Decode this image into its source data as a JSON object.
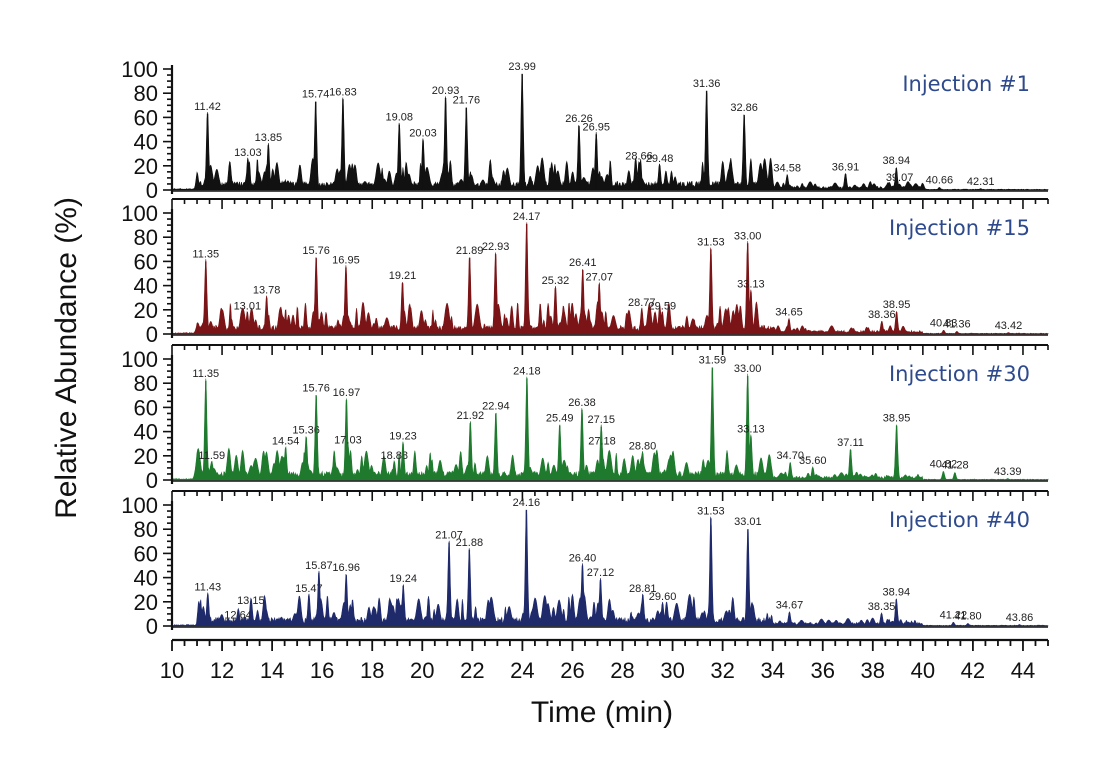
{
  "chart_data": {
    "type": "area",
    "title": "",
    "xlabel": "Time (min)",
    "ylabel": "Relative Abundance (%)",
    "xlim": [
      10,
      45
    ],
    "ylim": [
      0,
      100
    ],
    "x_ticks": [
      10,
      12,
      14,
      16,
      18,
      20,
      22,
      24,
      26,
      28,
      30,
      32,
      34,
      36,
      38,
      40,
      42,
      44
    ],
    "y_ticks": [
      0,
      20,
      40,
      60,
      80,
      100
    ],
    "grid": false,
    "legend": "none (each panel labelled top-right)",
    "panels": [
      {
        "name": "Injection #1",
        "color": "#111111",
        "peaks": [
          {
            "rt": 11.42,
            "label": "11.42",
            "abundance": 63
          },
          {
            "rt": 13.03,
            "label": "13.03",
            "abundance": 25
          },
          {
            "rt": 13.85,
            "label": "13.85",
            "abundance": 37
          },
          {
            "rt": 15.74,
            "label": "15.74",
            "abundance": 73
          },
          {
            "rt": 16.83,
            "label": "16.83",
            "abundance": 75
          },
          {
            "rt": 19.08,
            "label": "19.08",
            "abundance": 54
          },
          {
            "rt": 20.03,
            "label": "20.03",
            "abundance": 41
          },
          {
            "rt": 20.93,
            "label": "20.93",
            "abundance": 76
          },
          {
            "rt": 21.76,
            "label": "21.76",
            "abundance": 68
          },
          {
            "rt": 23.99,
            "label": "23.99",
            "abundance": 96
          },
          {
            "rt": 26.26,
            "label": "26.26",
            "abundance": 53
          },
          {
            "rt": 26.95,
            "label": "26.95",
            "abundance": 46
          },
          {
            "rt": 28.66,
            "label": "28.66",
            "abundance": 22
          },
          {
            "rt": 29.48,
            "label": "29.48",
            "abundance": 20
          },
          {
            "rt": 31.36,
            "label": "31.36",
            "abundance": 82
          },
          {
            "rt": 32.86,
            "label": "32.86",
            "abundance": 62
          },
          {
            "rt": 34.58,
            "label": "34.58",
            "abundance": 12
          },
          {
            "rt": 36.91,
            "label": "36.91",
            "abundance": 13
          },
          {
            "rt": 38.94,
            "label": "38.94",
            "abundance": 18
          },
          {
            "rt": 39.07,
            "label": "39.07",
            "abundance": 4
          },
          {
            "rt": 40.66,
            "label": "40.66",
            "abundance": 2
          },
          {
            "rt": 42.31,
            "label": "42.31",
            "abundance": 1
          }
        ]
      },
      {
        "name": "Injection #15",
        "color": "#7a1416",
        "peaks": [
          {
            "rt": 11.35,
            "label": "11.35",
            "abundance": 60
          },
          {
            "rt": 13.01,
            "label": "13.01",
            "abundance": 17
          },
          {
            "rt": 13.78,
            "label": "13.78",
            "abundance": 30
          },
          {
            "rt": 15.76,
            "label": "15.76",
            "abundance": 63
          },
          {
            "rt": 16.95,
            "label": "16.95",
            "abundance": 55
          },
          {
            "rt": 19.21,
            "label": "19.21",
            "abundance": 42
          },
          {
            "rt": 21.89,
            "label": "21.89",
            "abundance": 63
          },
          {
            "rt": 22.93,
            "label": "22.93",
            "abundance": 66
          },
          {
            "rt": 24.17,
            "label": "24.17",
            "abundance": 91
          },
          {
            "rt": 25.32,
            "label": "25.32",
            "abundance": 38
          },
          {
            "rt": 26.41,
            "label": "26.41",
            "abundance": 53
          },
          {
            "rt": 27.07,
            "label": "27.07",
            "abundance": 41
          },
          {
            "rt": 28.77,
            "label": "28.77",
            "abundance": 20
          },
          {
            "rt": 29.59,
            "label": "29.59",
            "abundance": 17
          },
          {
            "rt": 31.53,
            "label": "31.53",
            "abundance": 70
          },
          {
            "rt": 33.0,
            "label": "33.00",
            "abundance": 75
          },
          {
            "rt": 33.13,
            "label": "33.13",
            "abundance": 35
          },
          {
            "rt": 34.65,
            "label": "34.65",
            "abundance": 12
          },
          {
            "rt": 38.36,
            "label": "38.36",
            "abundance": 10
          },
          {
            "rt": 38.95,
            "label": "38.95",
            "abundance": 18
          },
          {
            "rt": 40.83,
            "label": "40.83",
            "abundance": 3
          },
          {
            "rt": 41.36,
            "label": "41.36",
            "abundance": 2
          },
          {
            "rt": 43.42,
            "label": "43.42",
            "abundance": 1
          }
        ]
      },
      {
        "name": "Injection #30",
        "color": "#1f7a2e",
        "peaks": [
          {
            "rt": 11.35,
            "label": "11.35",
            "abundance": 82
          },
          {
            "rt": 11.59,
            "label": "11.59",
            "abundance": 14
          },
          {
            "rt": 14.54,
            "label": "14.54",
            "abundance": 26
          },
          {
            "rt": 15.36,
            "label": "15.36",
            "abundance": 35
          },
          {
            "rt": 15.76,
            "label": "15.76",
            "abundance": 70
          },
          {
            "rt": 16.97,
            "label": "16.97",
            "abundance": 66
          },
          {
            "rt": 17.03,
            "label": "17.03",
            "abundance": 27
          },
          {
            "rt": 18.88,
            "label": "18.88",
            "abundance": 14
          },
          {
            "rt": 19.23,
            "label": "19.23",
            "abundance": 30
          },
          {
            "rt": 21.92,
            "label": "21.92",
            "abundance": 47
          },
          {
            "rt": 22.94,
            "label": "22.94",
            "abundance": 55
          },
          {
            "rt": 24.18,
            "label": "24.18",
            "abundance": 84
          },
          {
            "rt": 25.49,
            "label": "25.49",
            "abundance": 45
          },
          {
            "rt": 26.38,
            "label": "26.38",
            "abundance": 58
          },
          {
            "rt": 27.15,
            "label": "27.15",
            "abundance": 44
          },
          {
            "rt": 27.18,
            "label": "27.18",
            "abundance": 26
          },
          {
            "rt": 28.8,
            "label": "28.80",
            "abundance": 22
          },
          {
            "rt": 31.59,
            "label": "31.59",
            "abundance": 93
          },
          {
            "rt": 33.0,
            "label": "33.00",
            "abundance": 86
          },
          {
            "rt": 33.13,
            "label": "33.13",
            "abundance": 36
          },
          {
            "rt": 34.7,
            "label": "34.70",
            "abundance": 14
          },
          {
            "rt": 35.6,
            "label": "35.60",
            "abundance": 10
          },
          {
            "rt": 37.11,
            "label": "37.11",
            "abundance": 25
          },
          {
            "rt": 38.95,
            "label": "38.95",
            "abundance": 45
          },
          {
            "rt": 40.82,
            "label": "40.82",
            "abundance": 7
          },
          {
            "rt": 41.28,
            "label": "41.28",
            "abundance": 6
          },
          {
            "rt": 43.39,
            "label": "43.39",
            "abundance": 1
          }
        ]
      },
      {
        "name": "Injection #40",
        "color": "#1f2a6b",
        "peaks": [
          {
            "rt": 11.43,
            "label": "11.43",
            "abundance": 26
          },
          {
            "rt": 12.64,
            "label": "12.64",
            "abundance": 3
          },
          {
            "rt": 13.15,
            "label": "13.15",
            "abundance": 15
          },
          {
            "rt": 15.47,
            "label": "15.47",
            "abundance": 25
          },
          {
            "rt": 15.87,
            "label": "15.87",
            "abundance": 44
          },
          {
            "rt": 16.96,
            "label": "16.96",
            "abundance": 42
          },
          {
            "rt": 19.24,
            "label": "19.24",
            "abundance": 33
          },
          {
            "rt": 21.07,
            "label": "21.07",
            "abundance": 69
          },
          {
            "rt": 21.88,
            "label": "21.88",
            "abundance": 63
          },
          {
            "rt": 24.16,
            "label": "24.16",
            "abundance": 96
          },
          {
            "rt": 26.4,
            "label": "26.40",
            "abundance": 50
          },
          {
            "rt": 27.12,
            "label": "27.12",
            "abundance": 38
          },
          {
            "rt": 28.81,
            "label": "28.81",
            "abundance": 25
          },
          {
            "rt": 29.6,
            "label": "29.60",
            "abundance": 18
          },
          {
            "rt": 31.53,
            "label": "31.53",
            "abundance": 89
          },
          {
            "rt": 33.01,
            "label": "33.01",
            "abundance": 80
          },
          {
            "rt": 34.67,
            "label": "34.67",
            "abundance": 11
          },
          {
            "rt": 38.35,
            "label": "38.35",
            "abundance": 10
          },
          {
            "rt": 38.94,
            "label": "38.94",
            "abundance": 22
          },
          {
            "rt": 41.22,
            "label": "41.22",
            "abundance": 3
          },
          {
            "rt": 41.8,
            "label": "41.80",
            "abundance": 2
          },
          {
            "rt": 43.86,
            "label": "43.86",
            "abundance": 1
          }
        ]
      }
    ]
  },
  "style": {
    "panel_title_color": "#2e4a8c",
    "axis_color": "#111111",
    "leader_line_color": "#6aa86a"
  }
}
